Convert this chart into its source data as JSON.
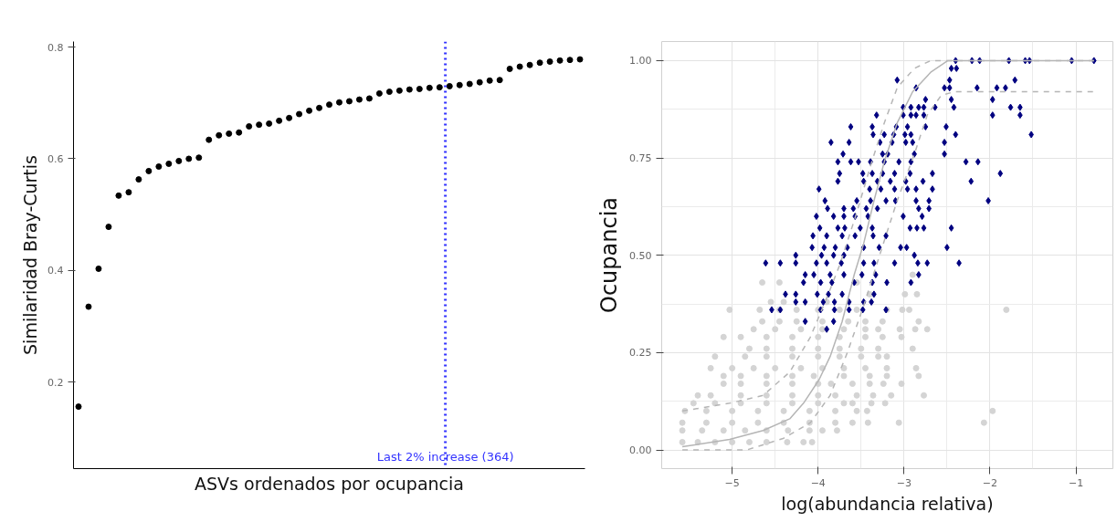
{
  "chart_data": [
    {
      "type": "scatter",
      "xlabel": "ASVs ordenados por ocupancia",
      "ylabel": "Similaridad Bray-Curtis",
      "categories": [
        null,
        null,
        null,
        null,
        null,
        null,
        null,
        null,
        null,
        null,
        null,
        null,
        null,
        null,
        null,
        null,
        null,
        null,
        null,
        null,
        null,
        null,
        null,
        null,
        null,
        null,
        null,
        null,
        null,
        null,
        null,
        null,
        null,
        null,
        null,
        null,
        null,
        null,
        null,
        null,
        null,
        null,
        null,
        null,
        null,
        null,
        null,
        null,
        null,
        null,
        null
      ],
      "ylim": [
        0.045,
        0.81
      ],
      "yticks": [
        0.2,
        0.4,
        0.6,
        0.8
      ],
      "tick_labels": "y",
      "grid": false,
      "marker": "circle",
      "series": [
        {
          "color": "#000000",
          "values": [
            0.156,
            0.335,
            0.403,
            0.478,
            0.534,
            0.54,
            0.563,
            0.578,
            0.586,
            0.591,
            0.596,
            0.6,
            0.602,
            0.634,
            0.642,
            0.645,
            0.647,
            0.658,
            0.661,
            0.663,
            0.668,
            0.673,
            0.68,
            0.686,
            0.691,
            0.697,
            0.701,
            0.703,
            0.706,
            0.708,
            0.717,
            0.72,
            0.722,
            0.724,
            0.725,
            0.727,
            0.728,
            0.73,
            0.732,
            0.734,
            0.737,
            0.74,
            0.741,
            0.761,
            0.765,
            0.768,
            0.772,
            0.774,
            0.776,
            0.777,
            0.778
          ]
        }
      ],
      "annotations": [
        "Last 2% increase (364)"
      ]
    },
    {
      "type": "scatter",
      "xlabel": "log(abundancia relativa)",
      "ylabel": "Ocupancia",
      "xlim": [
        -5.82,
        -0.57
      ],
      "ylim": [
        -0.048,
        1.049
      ],
      "xticks": [
        -5,
        -4,
        -3,
        -2,
        -1
      ],
      "yticks": [
        {
          "value": 0,
          "label": "0.00"
        },
        {
          "value": 0.25,
          "label": "0.25"
        },
        {
          "value": 0.5,
          "label": "0.50"
        },
        {
          "value": 0.75,
          "label": "0.75"
        },
        {
          "value": 1,
          "label": "1.00"
        }
      ],
      "grid": true,
      "series": [
        {
          "color": "#d4d4d4",
          "marker": "circle",
          "x": [
            -5.58,
            -5.4,
            -5.2,
            -5.0,
            -4.8,
            -4.6,
            -4.36,
            -4.17,
            -4.07,
            -5.58,
            -5.35,
            -5.1,
            -4.85,
            -4.6,
            -4.35,
            -4.1,
            -3.95,
            -3.78,
            -5.58,
            -5.3,
            -5.0,
            -4.7,
            -4.4,
            -4.1,
            -3.8,
            -3.6,
            -3.42,
            -3.06,
            -2.07,
            -5.55,
            -5.3,
            -5.0,
            -4.7,
            -4.4,
            -4.1,
            -3.8,
            -3.55,
            -3.43,
            -1.97,
            -5.45,
            -5.2,
            -4.9,
            -4.6,
            -4.3,
            -4.0,
            -3.7,
            -3.6,
            -3.38,
            -3.22,
            -5.4,
            -5.25,
            -4.9,
            -4.6,
            -4.3,
            -4.0,
            -3.8,
            -3.55,
            -3.36,
            -3.15,
            -2.77,
            -5.1,
            -4.9,
            -4.6,
            -4.3,
            -4.0,
            -3.85,
            -3.6,
            -3.4,
            -3.24,
            -3.03,
            -5.1,
            -4.9,
            -4.6,
            -4.3,
            -4.05,
            -3.7,
            -3.4,
            -3.2,
            -2.83,
            -5.25,
            -5.0,
            -4.75,
            -4.5,
            -4.2,
            -3.95,
            -3.7,
            -3.45,
            -3.2,
            -2.86,
            -5.2,
            -4.85,
            -4.6,
            -4.3,
            -4.0,
            -3.75,
            -3.5,
            -3.3,
            -3.2,
            -4.8,
            -4.6,
            -4.3,
            -4.0,
            -3.75,
            -3.5,
            -3.3,
            -2.9,
            -5.1,
            -4.9,
            -4.6,
            -4.3,
            -4.0,
            -3.75,
            -3.45,
            -3.25,
            -3.03,
            -4.75,
            -4.5,
            -4.2,
            -3.95,
            -3.7,
            -3.45,
            -3.3,
            -3.05,
            -2.87,
            -2.73,
            -4.65,
            -4.45,
            -4.25,
            -3.95,
            -3.65,
            -3.45,
            -3.25,
            -2.83,
            -5.03,
            -4.68,
            -4.45,
            -4.25,
            -4.0,
            -3.75,
            -3.55,
            -3.2,
            -3.02,
            -2.94,
            -1.81,
            -4.55,
            -4.4,
            -3.9,
            -3.4,
            -2.99,
            -2.85,
            -4.65,
            -4.45,
            -3.55,
            -2.9
          ],
          "values": [
            0.02,
            0.02,
            0.02,
            0.02,
            0.02,
            0.02,
            0.02,
            0.02,
            0.02,
            0.05,
            0.05,
            0.05,
            0.05,
            0.05,
            0.05,
            0.05,
            0.05,
            0.05,
            0.07,
            0.07,
            0.07,
            0.07,
            0.07,
            0.07,
            0.07,
            0.07,
            0.07,
            0.07,
            0.07,
            0.1,
            0.1,
            0.1,
            0.1,
            0.1,
            0.1,
            0.1,
            0.1,
            0.1,
            0.1,
            0.12,
            0.12,
            0.12,
            0.12,
            0.12,
            0.12,
            0.12,
            0.12,
            0.12,
            0.12,
            0.14,
            0.14,
            0.14,
            0.14,
            0.14,
            0.14,
            0.14,
            0.14,
            0.14,
            0.14,
            0.14,
            0.17,
            0.17,
            0.17,
            0.17,
            0.17,
            0.17,
            0.17,
            0.17,
            0.17,
            0.17,
            0.19,
            0.19,
            0.19,
            0.19,
            0.19,
            0.19,
            0.19,
            0.19,
            0.19,
            0.21,
            0.21,
            0.21,
            0.21,
            0.21,
            0.21,
            0.21,
            0.21,
            0.21,
            0.21,
            0.24,
            0.24,
            0.24,
            0.24,
            0.24,
            0.24,
            0.24,
            0.24,
            0.24,
            0.26,
            0.26,
            0.26,
            0.26,
            0.26,
            0.26,
            0.26,
            0.26,
            0.29,
            0.29,
            0.29,
            0.29,
            0.29,
            0.29,
            0.29,
            0.29,
            0.29,
            0.31,
            0.31,
            0.31,
            0.31,
            0.31,
            0.31,
            0.31,
            0.31,
            0.31,
            0.31,
            0.33,
            0.33,
            0.33,
            0.33,
            0.33,
            0.33,
            0.33,
            0.33,
            0.36,
            0.36,
            0.36,
            0.36,
            0.36,
            0.36,
            0.36,
            0.36,
            0.36,
            0.36,
            0.36,
            0.38,
            0.38,
            0.38,
            0.4,
            0.4,
            0.4,
            0.43,
            0.43,
            0.43,
            0.45
          ]
        },
        {
          "color": "#000080",
          "marker": "diamond",
          "x": [
            -2.4,
            -2.21,
            -2.12,
            -1.78,
            -1.59,
            -1.54,
            -1.05,
            -0.79,
            -2.45,
            -2.39,
            -3.08,
            -2.47,
            -1.71,
            -2.86,
            -2.53,
            -2.47,
            -2.15,
            -1.92,
            -1.82,
            -2.75,
            -2.45,
            -1.97,
            -3.01,
            -2.92,
            -2.83,
            -2.77,
            -2.64,
            -2.42,
            -1.76,
            -1.65,
            -3.32,
            -3.01,
            -2.92,
            -2.86,
            -2.77,
            -1.97,
            -1.65,
            -3.62,
            -3.37,
            -3.09,
            -2.96,
            -2.75,
            -2.51,
            -3.36,
            -3.23,
            -3.12,
            -2.99,
            -2.92,
            -2.4,
            -1.52,
            -3.85,
            -3.64,
            -3.28,
            -3.14,
            -2.98,
            -2.9,
            -2.53,
            -3.71,
            -3.25,
            -3.19,
            -2.88,
            -2.53,
            -3.77,
            -3.62,
            -3.53,
            -3.39,
            -3.23,
            -3.06,
            -2.92,
            -2.28,
            -2.14,
            -3.75,
            -3.48,
            -3.37,
            -3.25,
            -3.11,
            -2.93,
            -2.67,
            -1.88,
            -3.77,
            -3.47,
            -3.31,
            -3.16,
            -2.98,
            -2.78,
            -2.22,
            -3.99,
            -3.4,
            -3.27,
            -3.11,
            -2.96,
            -2.86,
            -2.67,
            -3.92,
            -3.55,
            -3.39,
            -3.21,
            -3.1,
            -2.86,
            -2.71,
            -2.02,
            -3.89,
            -3.7,
            -3.59,
            -3.44,
            -3.31,
            -2.83,
            -2.71,
            -4.02,
            -3.82,
            -3.7,
            -3.57,
            -3.42,
            -3.01,
            -2.79,
            -3.98,
            -3.77,
            -3.69,
            -3.51,
            -3.37,
            -2.93,
            -2.85,
            -2.77,
            -2.45,
            -4.06,
            -3.9,
            -3.72,
            -3.57,
            -3.36,
            -3.21,
            -4.07,
            -3.93,
            -3.8,
            -3.66,
            -3.47,
            -3.29,
            -3.04,
            -2.97,
            -2.5,
            -4.26,
            -3.96,
            -3.82,
            -3.7,
            -2.88,
            -4.61,
            -4.44,
            -4.26,
            -4.02,
            -3.9,
            -3.73,
            -3.47,
            -3.35,
            -3.11,
            -2.84,
            -2.73,
            -2.36,
            -4.15,
            -4.05,
            -3.86,
            -3.7,
            -3.49,
            -3.33,
            -2.83,
            -4.17,
            -3.97,
            -3.84,
            -3.58,
            -3.37,
            -3.2,
            -2.92,
            -4.38,
            -4.26,
            -4.01,
            -3.88,
            -3.72,
            -3.35,
            -4.26,
            -4.15,
            -3.94,
            -3.81,
            -3.64,
            -3.47,
            -3.38,
            -4.54,
            -4.44,
            -3.97,
            -3.81,
            -3.64,
            -3.48,
            -3.21,
            -4.15,
            -3.82,
            -3.9
          ],
          "values": [
            1.0,
            1.0,
            1.0,
            1.0,
            1.0,
            1.0,
            1.0,
            1.0,
            0.98,
            0.98,
            0.95,
            0.95,
            0.95,
            0.93,
            0.93,
            0.93,
            0.93,
            0.93,
            0.93,
            0.9,
            0.9,
            0.9,
            0.88,
            0.88,
            0.88,
            0.88,
            0.88,
            0.88,
            0.88,
            0.88,
            0.86,
            0.86,
            0.86,
            0.86,
            0.86,
            0.86,
            0.86,
            0.83,
            0.83,
            0.83,
            0.83,
            0.83,
            0.83,
            0.81,
            0.81,
            0.81,
            0.81,
            0.81,
            0.81,
            0.81,
            0.79,
            0.79,
            0.79,
            0.79,
            0.79,
            0.79,
            0.79,
            0.76,
            0.76,
            0.76,
            0.76,
            0.76,
            0.74,
            0.74,
            0.74,
            0.74,
            0.74,
            0.74,
            0.74,
            0.74,
            0.74,
            0.71,
            0.71,
            0.71,
            0.71,
            0.71,
            0.71,
            0.71,
            0.71,
            0.69,
            0.69,
            0.69,
            0.69,
            0.69,
            0.69,
            0.69,
            0.67,
            0.67,
            0.67,
            0.67,
            0.67,
            0.67,
            0.67,
            0.64,
            0.64,
            0.64,
            0.64,
            0.64,
            0.64,
            0.64,
            0.64,
            0.62,
            0.62,
            0.62,
            0.62,
            0.62,
            0.62,
            0.62,
            0.6,
            0.6,
            0.6,
            0.6,
            0.6,
            0.6,
            0.6,
            0.57,
            0.57,
            0.57,
            0.57,
            0.57,
            0.57,
            0.57,
            0.57,
            0.57,
            0.55,
            0.55,
            0.55,
            0.55,
            0.55,
            0.55,
            0.52,
            0.52,
            0.52,
            0.52,
            0.52,
            0.52,
            0.52,
            0.52,
            0.52,
            0.5,
            0.5,
            0.5,
            0.5,
            0.5,
            0.48,
            0.48,
            0.48,
            0.48,
            0.48,
            0.48,
            0.48,
            0.48,
            0.48,
            0.48,
            0.48,
            0.48,
            0.45,
            0.45,
            0.45,
            0.45,
            0.45,
            0.45,
            0.45,
            0.43,
            0.43,
            0.43,
            0.43,
            0.43,
            0.43,
            0.43,
            0.4,
            0.4,
            0.4,
            0.4,
            0.4,
            0.4,
            0.38,
            0.38,
            0.38,
            0.38,
            0.38,
            0.38,
            0.38,
            0.36,
            0.36,
            0.36,
            0.36,
            0.36,
            0.36,
            0.36,
            0.33,
            0.33,
            0.31
          ]
        },
        {
          "type": "line",
          "color": "#b5b5b5",
          "line_style": "solid",
          "x": [
            -5.58,
            -5.03,
            -4.64,
            -4.33,
            -4.17,
            -3.99,
            -3.86,
            -3.72,
            -3.58,
            -3.47,
            -3.35,
            -3.23,
            -3.08,
            -2.9,
            -2.69,
            -2.49,
            -0.79
          ],
          "values": [
            0.008,
            0.027,
            0.05,
            0.08,
            0.12,
            0.18,
            0.24,
            0.33,
            0.45,
            0.53,
            0.64,
            0.74,
            0.84,
            0.92,
            0.97,
            1.0,
            1.0
          ]
        },
        {
          "type": "line",
          "color": "#b5b5b5",
          "line_style": "dashed",
          "x": [
            -5.58,
            -5.03,
            -4.64,
            -4.33,
            -4.09,
            -3.9,
            -3.74,
            -3.55,
            -3.39,
            -3.23,
            -3.08,
            -2.88,
            -2.69,
            -0.79
          ],
          "values": [
            0.1,
            0.12,
            0.14,
            0.2,
            0.29,
            0.39,
            0.48,
            0.61,
            0.73,
            0.84,
            0.93,
            0.98,
            1.0,
            1.0
          ]
        },
        {
          "type": "line",
          "color": "#b5b5b5",
          "line_style": "dashed",
          "x": [
            -5.58,
            -4.83,
            -4.4,
            -4.09,
            -3.86,
            -3.66,
            -3.47,
            -3.27,
            -3.08,
            -2.88,
            -2.73,
            -2.57,
            -2.42,
            -0.79
          ],
          "values": [
            0.0,
            0.0,
            0.03,
            0.07,
            0.14,
            0.25,
            0.37,
            0.51,
            0.64,
            0.76,
            0.86,
            0.91,
            0.92,
            0.92
          ]
        }
      ]
    }
  ]
}
